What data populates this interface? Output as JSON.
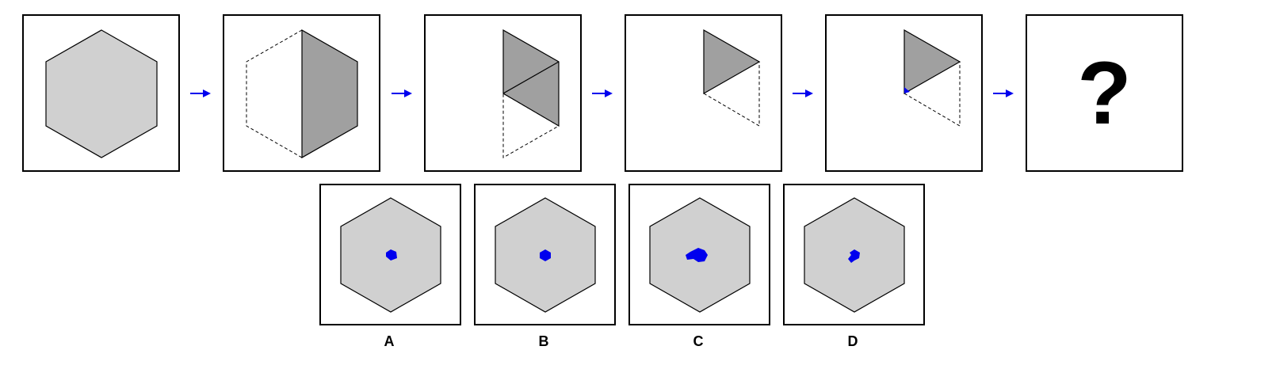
{
  "colors": {
    "hexagon_fill": "#d0d0d0",
    "folded_fill": "#a0a0a0",
    "hole_color": "#0000ee",
    "arrow_color": "#0000ee",
    "outline": "#000000"
  },
  "sequence": {
    "steps": [
      {
        "name": "step-unfolded-hexagon"
      },
      {
        "name": "step-folded-half"
      },
      {
        "name": "step-folded-quarter"
      },
      {
        "name": "step-folded-sixth"
      },
      {
        "name": "step-punched-hole"
      }
    ],
    "answer_placeholder": "?"
  },
  "options": [
    {
      "label": "A"
    },
    {
      "label": "B"
    },
    {
      "label": "C"
    },
    {
      "label": "D"
    }
  ]
}
